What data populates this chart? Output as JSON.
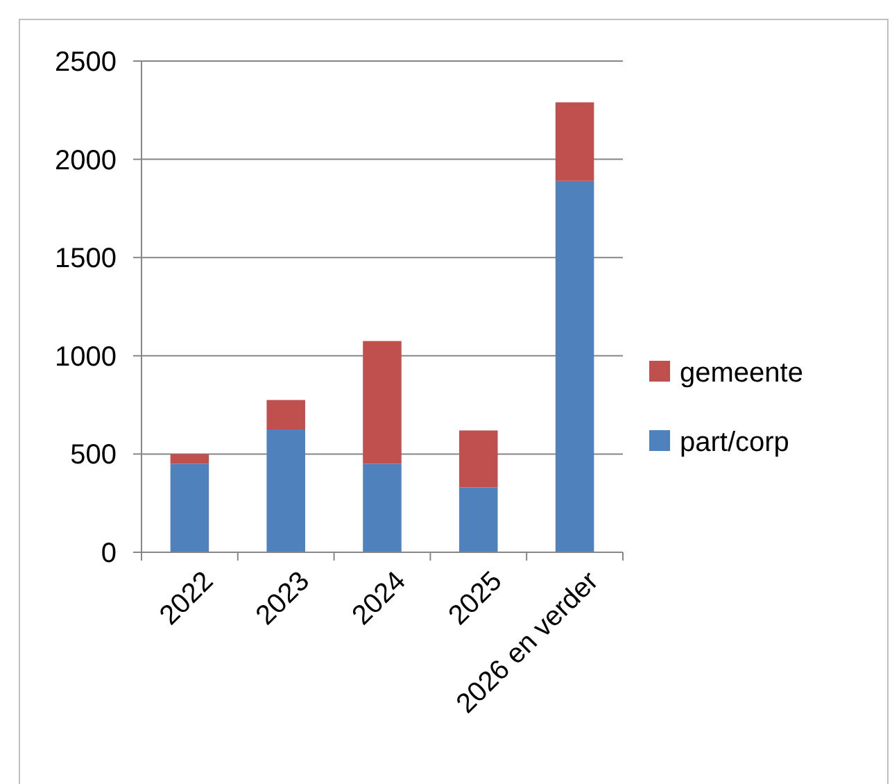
{
  "chart_data": {
    "type": "bar",
    "stacked": true,
    "categories": [
      "2022",
      "2023",
      "2024",
      "2025",
      "2026 en verder"
    ],
    "series": [
      {
        "name": "part/corp",
        "color": "#4f81bd",
        "values": [
          450,
          625,
          450,
          330,
          1890
        ]
      },
      {
        "name": "gemeente",
        "color": "#c0504d",
        "values": [
          50,
          150,
          625,
          290,
          400
        ]
      }
    ],
    "ylim": [
      0,
      2500
    ],
    "yticks": [
      0,
      500,
      1000,
      1500,
      2000,
      2500
    ],
    "grid": "y",
    "legend": "right"
  }
}
